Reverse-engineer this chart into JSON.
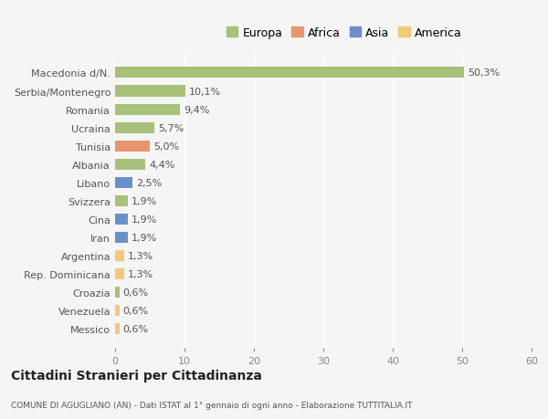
{
  "categories": [
    "Messico",
    "Venezuela",
    "Croazia",
    "Rep. Dominicana",
    "Argentina",
    "Iran",
    "Cina",
    "Svizzera",
    "Libano",
    "Albania",
    "Tunisia",
    "Ucraina",
    "Romania",
    "Serbia/Montenegro",
    "Macedonia d/N."
  ],
  "values": [
    0.6,
    0.6,
    0.6,
    1.3,
    1.3,
    1.9,
    1.9,
    1.9,
    2.5,
    4.4,
    5.0,
    5.7,
    9.4,
    10.1,
    50.3
  ],
  "labels": [
    "0,6%",
    "0,6%",
    "0,6%",
    "1,3%",
    "1,3%",
    "1,9%",
    "1,9%",
    "1,9%",
    "2,5%",
    "4,4%",
    "5,0%",
    "5,7%",
    "9,4%",
    "10,1%",
    "50,3%"
  ],
  "colors": [
    "#f0c97a",
    "#f0c97a",
    "#a8c07a",
    "#f0c97a",
    "#f0c97a",
    "#6b90c9",
    "#6b90c9",
    "#a8c07a",
    "#6b90c9",
    "#a8c07a",
    "#e8956d",
    "#a8c07a",
    "#a8c07a",
    "#a8c07a",
    "#a8c07a"
  ],
  "continent_colors": {
    "Europa": "#a8c07a",
    "Africa": "#e8956d",
    "Asia": "#6b90c9",
    "America": "#f0c97a"
  },
  "xlim": [
    0,
    60
  ],
  "xticks": [
    0,
    10,
    20,
    30,
    40,
    50,
    60
  ],
  "title": "Cittadini Stranieri per Cittadinanza",
  "subtitle": "COMUNE DI AGUGLIANO (AN) - Dati ISTAT al 1° gennaio di ogni anno - Elaborazione TUTTITALIA.IT",
  "bg_color": "#f5f5f5",
  "bar_height": 0.6,
  "grid_color": "#ffffff",
  "label_fontsize": 8,
  "tick_fontsize": 8,
  "legend_fontsize": 9
}
